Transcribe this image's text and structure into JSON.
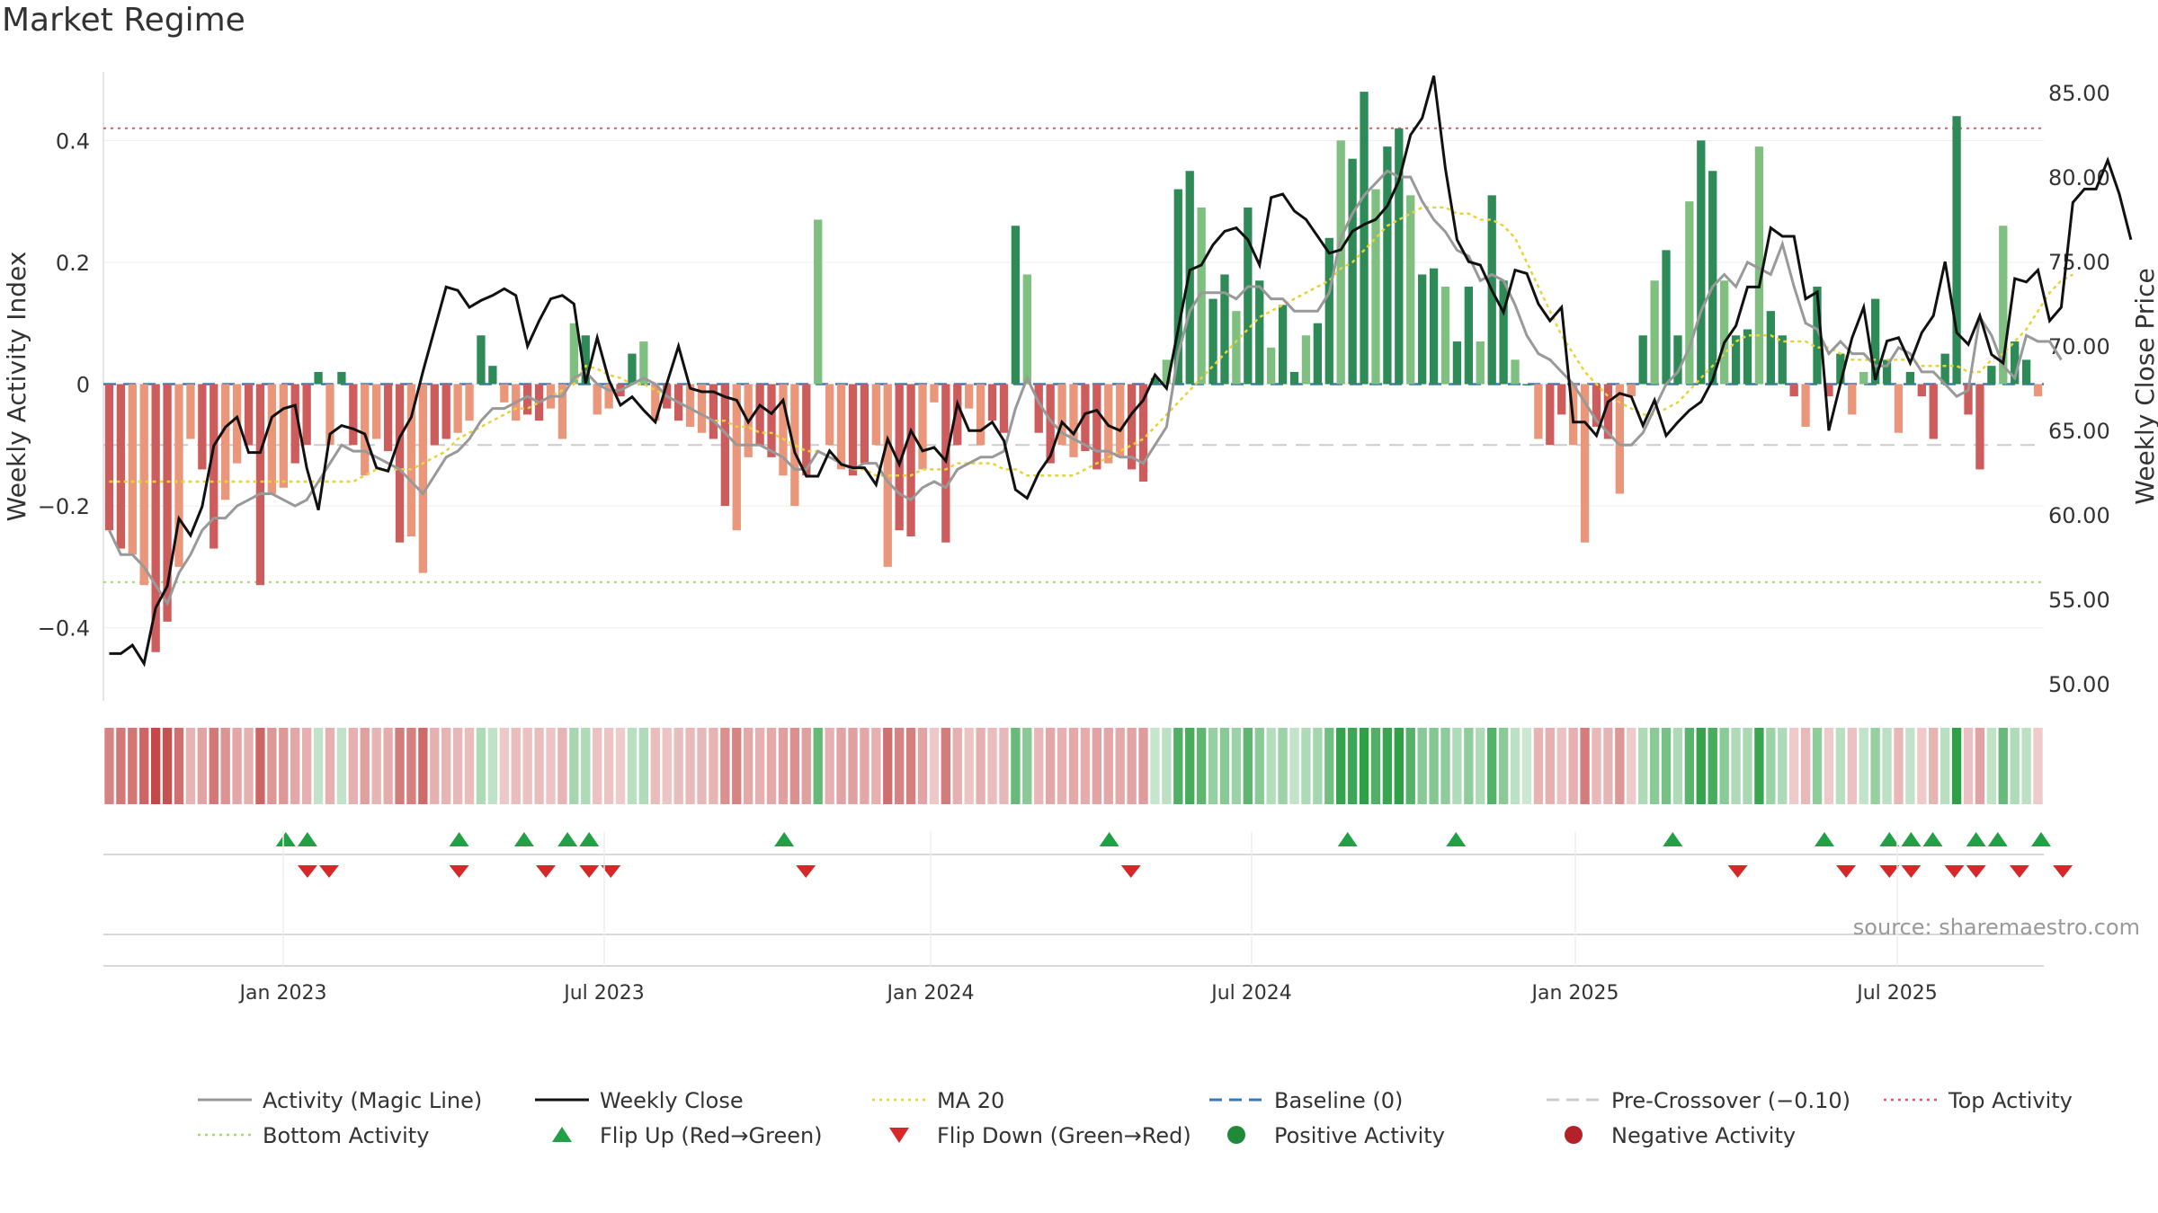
{
  "title": "Market Regime",
  "chart_data": {
    "type": "bar",
    "left_axis_label": "Weekly Activity Index",
    "right_axis_label": "Weekly Close Price",
    "left_ticks": [
      "0.4",
      "0.2",
      "0",
      "−0.2",
      "−0.4"
    ],
    "right_ticks": [
      "85.00",
      "80.00",
      "75.00",
      "70.00",
      "65.00",
      "60.00",
      "55.00",
      "50.00"
    ],
    "x_ticks": [
      "Jan 2023",
      "Jul 2023",
      "Jan 2024",
      "Jul 2024",
      "Jan 2025",
      "Jul 2025"
    ],
    "ylim_left": [
      -0.52,
      0.52
    ],
    "ylim_right": [
      49.0,
      86.5
    ],
    "reference_lines": {
      "baseline": 0,
      "pre_crossover": -0.1,
      "top_activity": 0.42,
      "bottom_activity": -0.325
    },
    "source": "source: sharemaestro.com",
    "activity": [
      -0.24,
      -0.27,
      -0.28,
      -0.33,
      -0.44,
      -0.39,
      -0.3,
      -0.09,
      -0.14,
      -0.27,
      -0.19,
      -0.13,
      -0.1,
      -0.33,
      -0.18,
      -0.17,
      -0.13,
      -0.1,
      0.02,
      -0.1,
      0.02,
      -0.1,
      -0.15,
      -0.09,
      -0.11,
      -0.26,
      -0.25,
      -0.31,
      -0.1,
      -0.09,
      -0.08,
      -0.06,
      0.08,
      0.03,
      -0.03,
      -0.06,
      -0.05,
      -0.06,
      -0.04,
      -0.09,
      0.1,
      0.08,
      -0.05,
      -0.04,
      -0.02,
      0.05,
      0.07,
      -0.06,
      -0.04,
      -0.06,
      -0.07,
      -0.08,
      -0.09,
      -0.2,
      -0.24,
      -0.12,
      -0.1,
      -0.12,
      -0.15,
      -0.2,
      -0.15,
      0.27,
      -0.1,
      -0.14,
      -0.15,
      -0.13,
      -0.1,
      -0.3,
      -0.24,
      -0.25,
      -0.14,
      -0.03,
      -0.26,
      -0.1,
      -0.04,
      -0.1,
      -0.06,
      -0.08,
      0.26,
      0.18,
      -0.08,
      -0.13,
      -0.1,
      -0.12,
      -0.11,
      -0.14,
      -0.13,
      -0.12,
      -0.14,
      -0.16,
      0.01,
      0.04,
      0.32,
      0.35,
      0.29,
      0.14,
      0.18,
      0.12,
      0.29,
      0.17,
      0.06,
      0.13,
      0.02,
      0.08,
      0.1,
      0.24,
      0.4,
      0.37,
      0.48,
      0.32,
      0.39,
      0.42,
      0.31,
      0.18,
      0.19,
      0.16,
      0.07,
      0.16,
      0.07,
      0.31,
      0.17,
      0.04,
      0,
      -0.09,
      -0.1,
      -0.05,
      -0.1,
      -0.26,
      -0.07,
      -0.09,
      -0.18,
      -0.02,
      0.08,
      0.17,
      0.22,
      0.08,
      0.3,
      0.4,
      0.35,
      0.17,
      0.08,
      0.09,
      0.39,
      0.12,
      0.08,
      -0.02,
      -0.07,
      0.16,
      -0.02,
      0.05,
      -0.05,
      0.02,
      0.14,
      0.04,
      -0.08,
      0.02,
      -0.02,
      -0.09,
      0.05,
      0.44,
      -0.05,
      -0.14,
      0.03,
      0.26,
      0.07,
      0.04,
      -0.02
    ],
    "weekly_close": [
      51.8,
      51.8,
      52.3,
      51.2,
      54.5,
      55.8,
      59.8,
      58.8,
      60.5,
      64.1,
      65.2,
      65.8,
      63.7,
      63.7,
      65.8,
      66.3,
      66.5,
      62.8,
      60.3,
      64.8,
      65.3,
      65.1,
      64.8,
      62.8,
      62.6,
      64.6,
      65.8,
      68.5,
      71.0,
      73.5,
      73.3,
      72.3,
      72.7,
      73.0,
      73.4,
      73.0,
      70.0,
      71.5,
      72.8,
      73.0,
      72.5,
      67.8,
      70.5,
      68.0,
      66.5,
      67.0,
      66.2,
      65.5,
      67.8,
      70.0,
      67.5,
      67.3,
      67.3,
      67.0,
      66.8,
      65.5,
      66.5,
      66.0,
      66.8,
      63.7,
      62.3,
      62.3,
      63.8,
      63.0,
      62.8,
      62.8,
      61.8,
      64.5,
      63.0,
      65.0,
      63.8,
      64.0,
      63.2,
      66.6,
      65.0,
      65.0,
      65.5,
      64.4,
      61.5,
      61.0,
      62.5,
      63.5,
      65.5,
      64.8,
      66.0,
      66.2,
      65.3,
      65.0,
      66.0,
      66.8,
      68.3,
      67.5,
      71.0,
      74.5,
      74.8,
      76.0,
      76.8,
      77.0,
      76.3,
      74.8,
      78.8,
      79.0,
      78.0,
      77.5,
      76.5,
      75.5,
      75.7,
      76.8,
      77.2,
      77.5,
      78.3,
      79.8,
      82.5,
      83.5,
      86.0,
      80.5,
      76.3,
      75.0,
      74.8,
      73.3,
      72.0,
      74.5,
      74.3,
      72.5,
      71.5,
      72.3,
      65.5,
      65.5,
      64.7,
      66.7,
      67.2,
      67.0,
      65.3,
      66.8,
      64.7,
      65.5,
      66.2,
      66.7,
      68.0,
      70.2,
      71.2,
      73.5,
      73.5,
      77.0,
      76.5,
      76.5,
      72.8,
      73.2,
      65.0,
      67.8,
      70.5,
      72.3,
      68.0,
      70.3,
      70.5,
      69.0,
      70.8,
      71.8,
      75.0,
      70.8,
      70.1,
      71.8,
      69.5,
      69.0,
      74.0,
      73.8,
      74.5,
      71.5,
      72.3,
      78.5,
      79.3,
      79.3,
      81.0,
      79.0,
      76.3
    ],
    "magic_line": [
      -0.24,
      -0.28,
      -0.28,
      -0.3,
      -0.33,
      -0.36,
      -0.31,
      -0.28,
      -0.24,
      -0.22,
      -0.22,
      -0.2,
      -0.19,
      -0.18,
      -0.18,
      -0.19,
      -0.2,
      -0.19,
      -0.16,
      -0.13,
      -0.1,
      -0.11,
      -0.11,
      -0.12,
      -0.13,
      -0.14,
      -0.16,
      -0.18,
      -0.15,
      -0.12,
      -0.11,
      -0.09,
      -0.06,
      -0.04,
      -0.04,
      -0.03,
      -0.02,
      -0.03,
      -0.02,
      -0.02,
      0.01,
      0.02,
      0.0,
      -0.01,
      -0.01,
      0.0,
      0.01,
      0.0,
      -0.02,
      -0.03,
      -0.04,
      -0.05,
      -0.06,
      -0.08,
      -0.1,
      -0.1,
      -0.1,
      -0.11,
      -0.12,
      -0.14,
      -0.14,
      -0.11,
      -0.12,
      -0.13,
      -0.14,
      -0.13,
      -0.13,
      -0.16,
      -0.18,
      -0.19,
      -0.17,
      -0.16,
      -0.17,
      -0.14,
      -0.13,
      -0.12,
      -0.12,
      -0.11,
      -0.04,
      0.01,
      -0.03,
      -0.06,
      -0.08,
      -0.09,
      -0.1,
      -0.11,
      -0.11,
      -0.12,
      -0.12,
      -0.13,
      -0.1,
      -0.07,
      0.05,
      0.12,
      0.15,
      0.15,
      0.15,
      0.14,
      0.16,
      0.16,
      0.14,
      0.14,
      0.12,
      0.12,
      0.12,
      0.15,
      0.24,
      0.28,
      0.31,
      0.33,
      0.35,
      0.34,
      0.34,
      0.3,
      0.27,
      0.25,
      0.22,
      0.21,
      0.17,
      0.18,
      0.17,
      0.13,
      0.08,
      0.05,
      0.04,
      0.02,
      0.0,
      -0.03,
      -0.06,
      -0.08,
      -0.1,
      -0.1,
      -0.08,
      -0.04,
      0.0,
      0.02,
      0.06,
      0.12,
      0.16,
      0.18,
      0.16,
      0.2,
      0.19,
      0.18,
      0.23,
      0.16,
      0.1,
      0.09,
      0.05,
      0.07,
      0.05,
      0.05,
      0.03,
      0.03,
      0.06,
      0.05,
      0.02,
      0.02,
      0.0,
      -0.02,
      -0.01,
      0.11,
      0.08,
      0.03,
      0.01,
      0.08,
      0.07,
      0.07,
      0.04
    ],
    "ma20": [
      -0.16,
      -0.16,
      -0.16,
      -0.16,
      -0.16,
      -0.16,
      -0.16,
      -0.16,
      -0.16,
      -0.16,
      -0.16,
      -0.16,
      -0.16,
      -0.16,
      -0.16,
      -0.16,
      -0.16,
      -0.16,
      -0.16,
      -0.16,
      -0.16,
      -0.16,
      -0.15,
      -0.14,
      -0.14,
      -0.14,
      -0.14,
      -0.13,
      -0.12,
      -0.11,
      -0.09,
      -0.08,
      -0.07,
      -0.06,
      -0.05,
      -0.04,
      -0.04,
      -0.03,
      -0.02,
      -0.01,
      0.0,
      0.03,
      0.025,
      0.015,
      0.01,
      0.0,
      0.0,
      -0.01,
      -0.02,
      -0.03,
      -0.04,
      -0.05,
      -0.06,
      -0.06,
      -0.07,
      -0.07,
      -0.08,
      -0.08,
      -0.09,
      -0.1,
      -0.11,
      -0.11,
      -0.12,
      -0.13,
      -0.14,
      -0.14,
      -0.15,
      -0.15,
      -0.15,
      -0.15,
      -0.14,
      -0.14,
      -0.14,
      -0.13,
      -0.13,
      -0.13,
      -0.13,
      -0.14,
      -0.14,
      -0.15,
      -0.15,
      -0.15,
      -0.15,
      -0.15,
      -0.14,
      -0.13,
      -0.12,
      -0.11,
      -0.1,
      -0.09,
      -0.07,
      -0.05,
      -0.03,
      -0.01,
      0.01,
      0.03,
      0.05,
      0.07,
      0.09,
      0.11,
      0.12,
      0.13,
      0.14,
      0.15,
      0.16,
      0.17,
      0.19,
      0.2,
      0.22,
      0.24,
      0.26,
      0.27,
      0.28,
      0.29,
      0.29,
      0.29,
      0.28,
      0.28,
      0.27,
      0.27,
      0.26,
      0.24,
      0.2,
      0.16,
      0.12,
      0.08,
      0.05,
      0.02,
      0.0,
      -0.02,
      -0.03,
      -0.04,
      -0.05,
      -0.05,
      -0.04,
      -0.03,
      -0.01,
      0.01,
      0.03,
      0.05,
      0.07,
      0.08,
      0.08,
      0.08,
      0.07,
      0.07,
      0.07,
      0.06,
      0.06,
      0.05,
      0.04,
      0.04,
      0.04,
      0.04,
      0.04,
      0.04,
      0.03,
      0.03,
      0.03,
      0.03,
      0.02,
      0.02,
      0.04,
      0.05,
      0.07,
      0.09,
      0.12,
      0.15,
      0.17,
      0.18
    ],
    "flip_up_index": [
      8,
      9,
      16,
      19,
      21,
      22,
      31,
      46,
      57,
      62,
      72,
      79,
      82,
      83,
      84,
      86,
      87,
      89
    ],
    "flip_down_index": [
      9,
      10,
      16,
      20,
      22,
      23,
      32,
      47,
      75,
      80,
      82,
      83,
      85,
      86,
      88,
      90
    ],
    "legend": [
      {
        "label": "Activity (Magic Line)",
        "symbol": "line",
        "color": "#999999"
      },
      {
        "label": "Weekly Close",
        "symbol": "line",
        "color": "#111111"
      },
      {
        "label": "MA 20",
        "symbol": "dotted",
        "color": "#e8d23a"
      },
      {
        "label": "Baseline (0)",
        "symbol": "dashed",
        "color": "#3a78b5"
      },
      {
        "label": "Pre-Crossover (−0.10)",
        "symbol": "dashed",
        "color": "#cccccc"
      },
      {
        "label": "Top Activity",
        "symbol": "dotted",
        "color": "#e05565"
      },
      {
        "label": "Bottom Activity",
        "symbol": "dotted",
        "color": "#a8d870"
      },
      {
        "label": "Flip Up (Red→Green)",
        "symbol": "triangle-up",
        "color": "#22a045"
      },
      {
        "label": "Flip Down (Green→Red)",
        "symbol": "triangle-down",
        "color": "#d62828"
      },
      {
        "label": "Positive Activity",
        "symbol": "dot",
        "color": "#1e8a3a"
      },
      {
        "label": "Negative Activity",
        "symbol": "dot",
        "color": "#b22228"
      }
    ],
    "colors": {
      "pos_strong": "#2e8b57",
      "pos_light": "#7fbf7f",
      "neg_strong": "#cd5c5c",
      "neg_light": "#e9967a"
    }
  }
}
